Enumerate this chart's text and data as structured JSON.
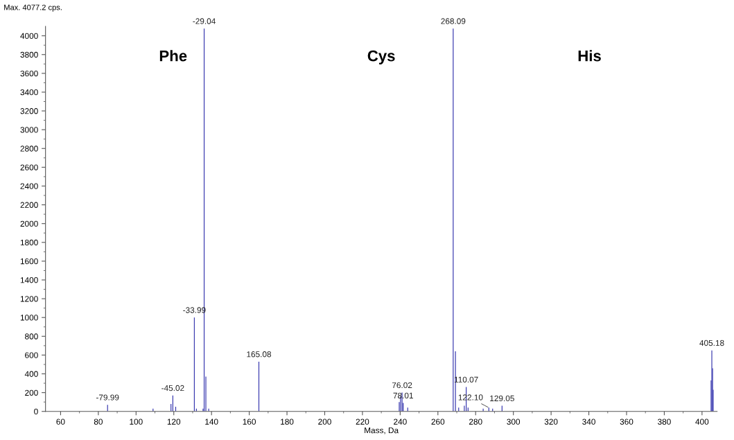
{
  "chart_data": {
    "type": "bar",
    "title": "Max. 4077.2 cps.",
    "xlabel": "Mass, Da",
    "color": "#3b3bb0",
    "x": [
      84.9,
      109,
      118.5,
      119.5,
      121,
      130.9,
      132,
      135.5,
      136.1,
      137,
      138.5,
      165.1,
      239.5,
      240.2,
      241,
      241.6,
      244,
      268.1,
      269.3,
      271,
      274,
      275,
      276,
      284,
      287,
      289,
      294,
      404.8,
      405.2,
      405.6,
      405.9
    ],
    "values": [
      70,
      30,
      80,
      170,
      50,
      1000,
      30,
      30,
      4077,
      370,
      30,
      530,
      100,
      160,
      200,
      90,
      40,
      4077,
      640,
      40,
      60,
      260,
      40,
      30,
      40,
      30,
      60,
      330,
      650,
      460,
      230
    ],
    "xlim": [
      52,
      408
    ],
    "xticks": [
      60,
      80,
      100,
      120,
      140,
      160,
      180,
      200,
      220,
      240,
      260,
      280,
      300,
      320,
      340,
      360,
      380,
      400
    ],
    "ylim": [
      0,
      4100
    ],
    "yticks": [
      0,
      200,
      400,
      600,
      800,
      1000,
      1200,
      1400,
      1600,
      1800,
      2000,
      2200,
      2400,
      2600,
      2800,
      3000,
      3200,
      3400,
      3600,
      3800,
      4000
    ],
    "grid": false,
    "annotations": [
      {
        "text": "-79.99",
        "x": 84.9,
        "y": 70
      },
      {
        "text": "-45.02",
        "x": 119.5,
        "y": 170
      },
      {
        "text": "-33.99",
        "x": 130.9,
        "y": 1000
      },
      {
        "text": "-29.04",
        "x": 136.1,
        "y": 4077
      },
      {
        "text": "165.08",
        "x": 165.1,
        "y": 530
      },
      {
        "text": "76.02",
        "x": 241,
        "y": 200
      },
      {
        "text": "78.01",
        "x": 241.6,
        "y": 90
      },
      {
        "text": "268.09",
        "x": 268.1,
        "y": 4077
      },
      {
        "text": "110.07",
        "x": 275,
        "y": 260
      },
      {
        "text": "122.10",
        "x": 287,
        "y": 40
      },
      {
        "text": "129.05",
        "x": 294,
        "y": 60
      },
      {
        "text": "405.18",
        "x": 405.2,
        "y": 650
      },
      "Phe",
      "Cys",
      "His"
    ]
  }
}
